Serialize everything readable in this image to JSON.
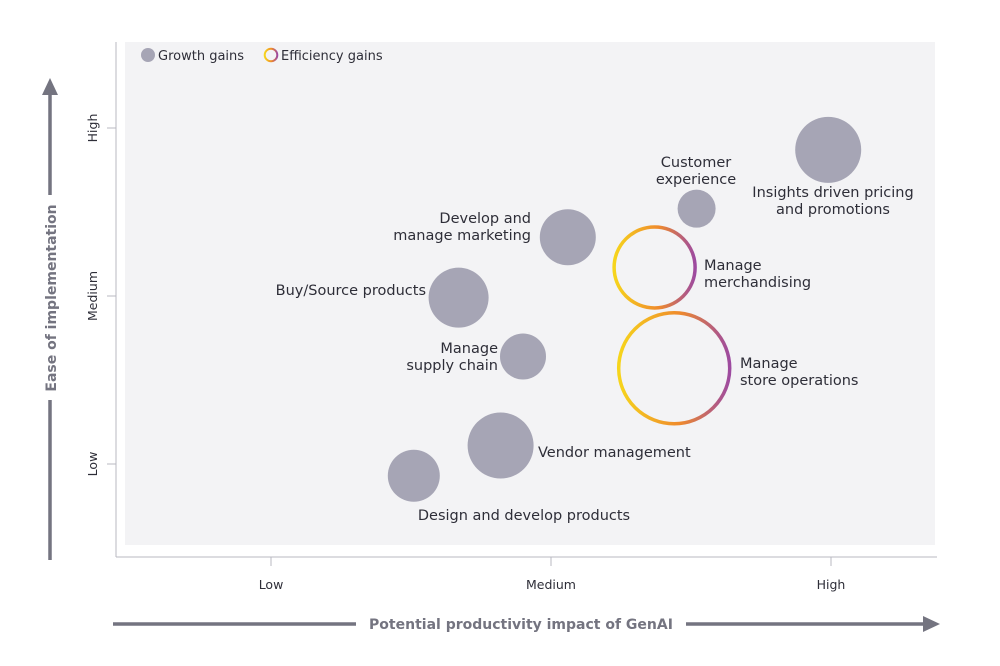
{
  "chart_data": {
    "type": "bubble",
    "xlabel": "Potential productivity impact of GenAI",
    "ylabel": "Ease of implementation",
    "x_ticks": [
      {
        "value": 1,
        "label": "Low"
      },
      {
        "value": 2,
        "label": "Medium"
      },
      {
        "value": 3,
        "label": "High"
      }
    ],
    "y_ticks": [
      {
        "value": 1,
        "label": "Low"
      },
      {
        "value": 2,
        "label": "Medium"
      },
      {
        "value": 3,
        "label": "High"
      }
    ],
    "xlim": [
      0.45,
      3.4
    ],
    "ylim": [
      0.45,
      3.5
    ],
    "grid": false,
    "legend_position": "top-left",
    "legend": [
      {
        "key": "growth",
        "label": "Growth gains"
      },
      {
        "key": "efficiency",
        "label": "Efficiency gains"
      }
    ],
    "colors": {
      "growth": "#a6a5b5",
      "efficiency_gradient": [
        "#f6d51c",
        "#ef8a2c",
        "#9d4aa0"
      ],
      "plot_background": "#f3f3f5",
      "axis": "#747480",
      "text": "#2e2e38"
    },
    "points": [
      {
        "label": [
          "Insights driven pricing",
          "and promotions"
        ],
        "x": 2.99,
        "y": 2.87,
        "size": 33,
        "category": "growth"
      },
      {
        "label": [
          "Customer",
          "experience"
        ],
        "x": 2.52,
        "y": 2.52,
        "size": 19,
        "category": "growth"
      },
      {
        "label": [
          "Develop and",
          "manage marketing"
        ],
        "x": 2.06,
        "y": 2.35,
        "size": 28,
        "category": "growth"
      },
      {
        "label": [
          "Manage",
          "merchandising"
        ],
        "x": 2.37,
        "y": 2.17,
        "size": 42,
        "category": "efficiency"
      },
      {
        "label": [
          "Buy/Source products"
        ],
        "x": 1.67,
        "y": 1.99,
        "size": 30,
        "category": "growth"
      },
      {
        "label": [
          "Manage",
          "supply chain"
        ],
        "x": 1.9,
        "y": 1.64,
        "size": 23,
        "category": "growth"
      },
      {
        "label": [
          "Manage",
          "store operations"
        ],
        "x": 2.44,
        "y": 1.57,
        "size": 57,
        "category": "efficiency"
      },
      {
        "label": [
          "Vendor management"
        ],
        "x": 1.82,
        "y": 1.11,
        "size": 33,
        "category": "growth"
      },
      {
        "label": [
          "Design and develop products"
        ],
        "x": 1.51,
        "y": 0.93,
        "size": 26,
        "category": "growth"
      }
    ]
  }
}
